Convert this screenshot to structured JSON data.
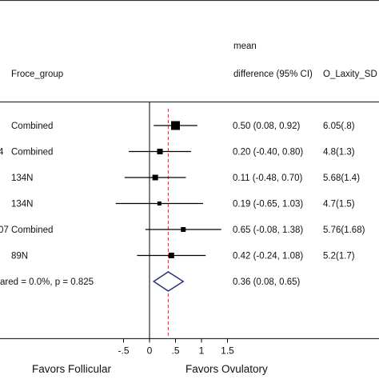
{
  "chart_data": {
    "type": "forest",
    "header": {
      "group_col": "Froce_group",
      "ci_col_line1": "mean",
      "ci_col_line2": "difference (95% CI)",
      "extra_col": "O_Laxity_SD"
    },
    "rows": [
      {
        "study": "",
        "group": "Combined",
        "mean": 0.5,
        "lo": 0.08,
        "hi": 0.92,
        "ci_text": "0.50 (0.08, 0.92)",
        "extra": "6.05(.8)"
      },
      {
        "study": "4",
        "group": "Combined",
        "mean": 0.2,
        "lo": -0.4,
        "hi": 0.8,
        "ci_text": "0.20 (-0.40, 0.80)",
        "extra": "4.8(1.3)"
      },
      {
        "study": "",
        "group": "134N",
        "mean": 0.11,
        "lo": -0.48,
        "hi": 0.7,
        "ci_text": "0.11 (-0.48, 0.70)",
        "extra": "5.68(1.4)"
      },
      {
        "study": "",
        "group": "134N",
        "mean": 0.19,
        "lo": -0.65,
        "hi": 1.03,
        "ci_text": "0.19 (-0.65, 1.03)",
        "extra": "4.7(1.5)"
      },
      {
        "study": "07",
        "group": "Combined",
        "mean": 0.65,
        "lo": -0.08,
        "hi": 1.38,
        "ci_text": "0.65 (-0.08, 1.38)",
        "extra": "5.76(1.68)"
      },
      {
        "study": "",
        "group": "89N",
        "mean": 0.42,
        "lo": -0.24,
        "hi": 1.08,
        "ci_text": "0.42 (-0.24, 1.08)",
        "extra": "5.2(1.7)"
      }
    ],
    "overall": {
      "label": "ared = 0.0%, p = 0.825",
      "mean": 0.36,
      "lo": 0.08,
      "hi": 0.65,
      "ci_text": "0.36 (0.08, 0.65)"
    },
    "x_ticks": [
      -0.5,
      0,
      0.5,
      1,
      1.5
    ],
    "x_tick_labels": [
      "-.5",
      "0",
      ".5",
      "1",
      "1.5"
    ],
    "xlim": [
      -0.5,
      1.5
    ],
    "favor_left": "Favors Follicular",
    "favor_right": "Favors Ovulatory",
    "colors": {
      "ink": "#000000",
      "diamond": "#1f2f7a",
      "null_line": "#cc3333",
      "rule": "#333333"
    }
  }
}
